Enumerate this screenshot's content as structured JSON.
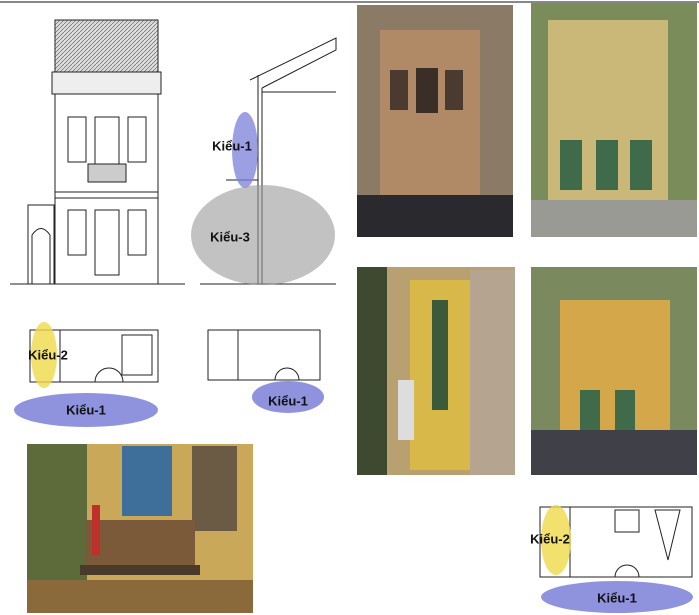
{
  "elevation_section": {
    "label_upper": "Kiểu-1",
    "label_lower": "Kiểu-3"
  },
  "plan_left": {
    "label_side": "Kiểu-2",
    "label_front": "Kiểu-1"
  },
  "plan_middle": {
    "label_front": "Kiểu-1"
  },
  "plan_right": {
    "label_side": "Kiểu-2",
    "label_front": "Kiểu-1"
  }
}
